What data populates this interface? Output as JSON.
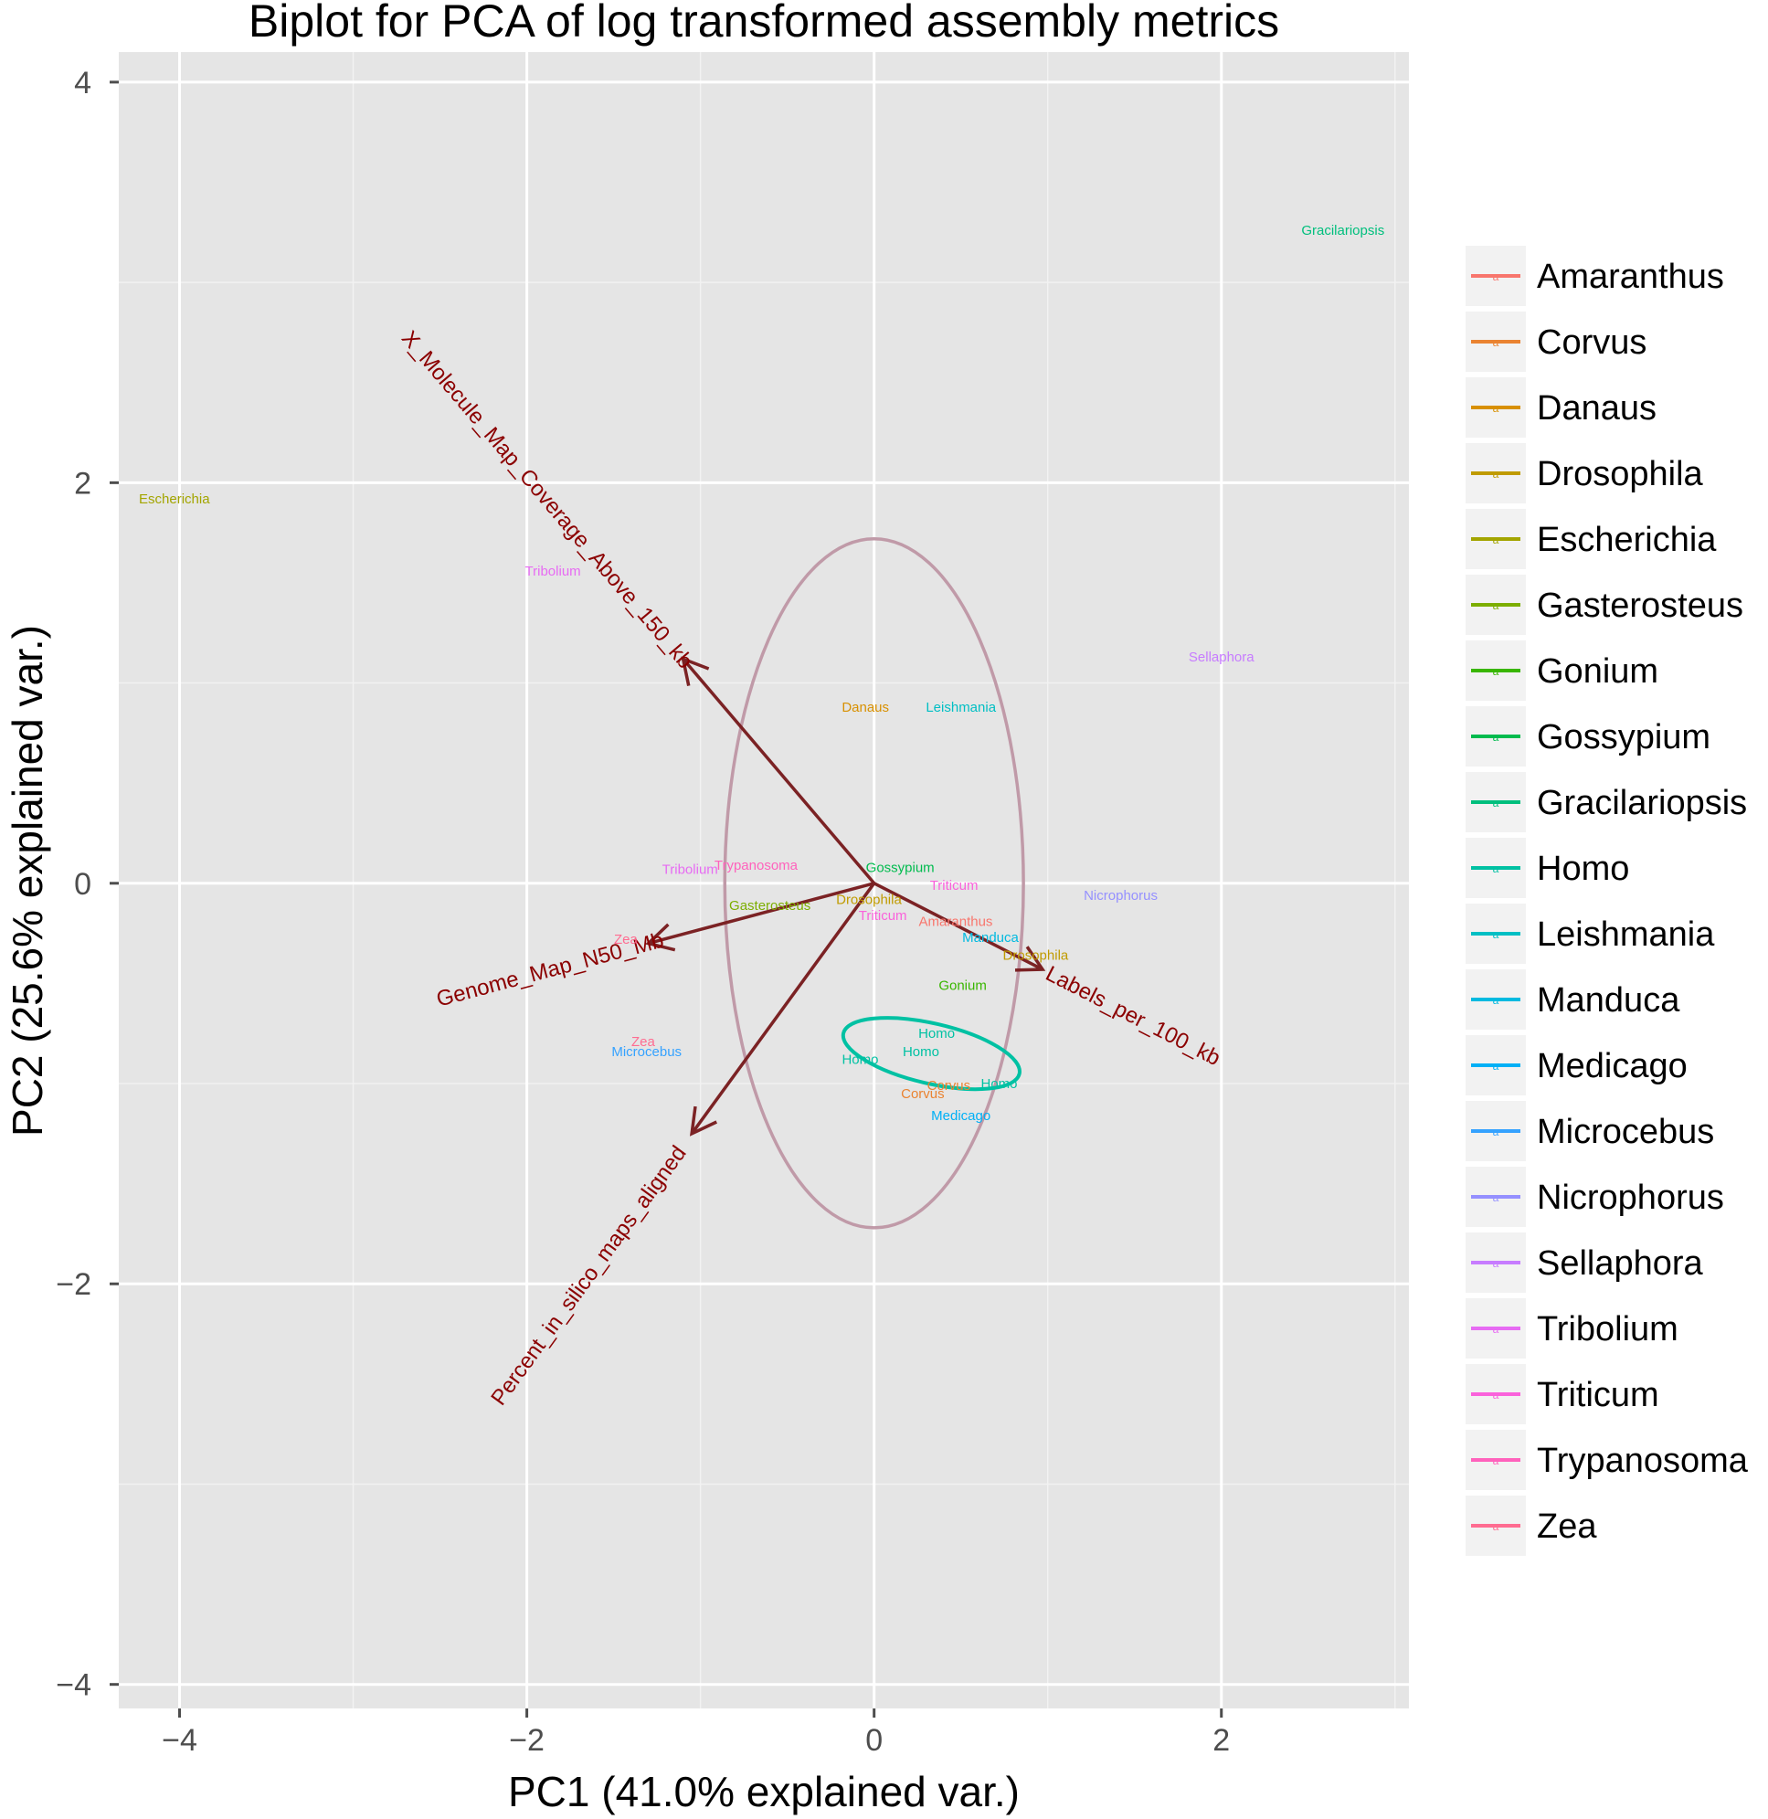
{
  "chart_data": {
    "type": "scatter",
    "title": "Biplot for PCA of log transformed assembly metrics",
    "xlabel": "PC1 (41.0% explained var.)",
    "ylabel": "PC2 (25.6% explained var.)",
    "xlim": [
      -4.35,
      3.08
    ],
    "ylim": [
      -4.12,
      4.15
    ],
    "x_ticks": [
      -4,
      -2,
      0,
      2
    ],
    "x_tick_labels": [
      "−4",
      "−2",
      "0",
      "2"
    ],
    "y_ticks": [
      -4,
      -2,
      0,
      2,
      4
    ],
    "y_tick_labels": [
      "−4",
      "−2",
      "0",
      "2",
      "4"
    ],
    "grid": true,
    "legend_position": "right",
    "groups": [
      {
        "name": "Amaranthus",
        "color": "#F8766D"
      },
      {
        "name": "Corvus",
        "color": "#EA8331"
      },
      {
        "name": "Danaus",
        "color": "#D89000"
      },
      {
        "name": "Drosophila",
        "color": "#C09B00"
      },
      {
        "name": "Escherichia",
        "color": "#A3A500"
      },
      {
        "name": "Gasterosteus",
        "color": "#7CAE00"
      },
      {
        "name": "Gonium",
        "color": "#39B600"
      },
      {
        "name": "Gossypium",
        "color": "#00BB4E"
      },
      {
        "name": "Gracilariopsis",
        "color": "#00BF7D"
      },
      {
        "name": "Homo",
        "color": "#00C1A3"
      },
      {
        "name": "Leishmania",
        "color": "#00BFC4"
      },
      {
        "name": "Manduca",
        "color": "#00BAE0"
      },
      {
        "name": "Medicago",
        "color": "#00B0F6"
      },
      {
        "name": "Microcebus",
        "color": "#35A2FF"
      },
      {
        "name": "Nicrophorus",
        "color": "#9590FF"
      },
      {
        "name": "Sellaphora",
        "color": "#C77CFF"
      },
      {
        "name": "Tribolium",
        "color": "#E76BF3"
      },
      {
        "name": "Triticum",
        "color": "#FA62DB"
      },
      {
        "name": "Trypanosoma",
        "color": "#FF62BC"
      },
      {
        "name": "Zea",
        "color": "#FF6C91"
      }
    ],
    "points": [
      {
        "label": "Gracilariopsis",
        "x": 2.7,
        "y": 3.26
      },
      {
        "label": "Escherichia",
        "x": -4.03,
        "y": 1.92
      },
      {
        "label": "Tribolium",
        "x": -1.85,
        "y": 1.56
      },
      {
        "label": "Sellaphora",
        "x": 2.0,
        "y": 1.13
      },
      {
        "label": "Danaus",
        "x": -0.05,
        "y": 0.88
      },
      {
        "label": "Leishmania",
        "x": 0.5,
        "y": 0.88
      },
      {
        "label": "Tribolium",
        "x": -1.06,
        "y": 0.07
      },
      {
        "label": "Trypanosoma",
        "x": -0.68,
        "y": 0.09
      },
      {
        "label": "Gossypium",
        "x": 0.15,
        "y": 0.08
      },
      {
        "label": "Triticum",
        "x": 0.46,
        "y": -0.01
      },
      {
        "label": "Nicrophorus",
        "x": 1.42,
        "y": -0.06
      },
      {
        "label": "Gasterosteus",
        "x": -0.6,
        "y": -0.11
      },
      {
        "label": "Drosophila",
        "x": -0.03,
        "y": -0.08
      },
      {
        "label": "Triticum",
        "x": 0.05,
        "y": -0.16
      },
      {
        "label": "Amaranthus",
        "x": 0.47,
        "y": -0.19
      },
      {
        "label": "Manduca",
        "x": 0.67,
        "y": -0.27
      },
      {
        "label": "Drosophila",
        "x": 0.93,
        "y": -0.36
      },
      {
        "label": "Zea",
        "x": -1.43,
        "y": -0.28
      },
      {
        "label": "Gonium",
        "x": 0.51,
        "y": -0.51
      },
      {
        "label": "Homo",
        "x": 0.36,
        "y": -0.75
      },
      {
        "label": "Zea",
        "x": -1.33,
        "y": -0.79
      },
      {
        "label": "Microcebus",
        "x": -1.31,
        "y": -0.84
      },
      {
        "label": "Homo",
        "x": 0.27,
        "y": -0.84
      },
      {
        "label": "Homo",
        "x": -0.08,
        "y": -0.88
      },
      {
        "label": "Homo",
        "x": 0.72,
        "y": -1.0
      },
      {
        "label": "Corvus",
        "x": 0.43,
        "y": -1.01
      },
      {
        "label": "Corvus",
        "x": 0.28,
        "y": -1.05
      },
      {
        "label": "Medicago",
        "x": 0.5,
        "y": -1.16
      }
    ],
    "loadings": [
      {
        "name": "X_Molecule_Map_Coverage_Above_150_kb",
        "x": -1.1,
        "y": 1.12
      },
      {
        "name": "Genome_Map_N50_Mb",
        "x": -1.3,
        "y": -0.3
      },
      {
        "name": "Labels_per_100_kb",
        "x": 0.97,
        "y": -0.43
      },
      {
        "name": "Percent_in_silico_maps_aligned",
        "x": -1.05,
        "y": -1.25
      }
    ],
    "correlation_circle": {
      "cx": 0.0,
      "cy": 0.0,
      "rx": 0.86,
      "ry": 1.72
    },
    "group_ellipse": {
      "group": "Homo",
      "cx": 0.33,
      "cy": -0.85,
      "rx": 0.52,
      "ry": 0.15,
      "rotation_deg": 13
    }
  }
}
